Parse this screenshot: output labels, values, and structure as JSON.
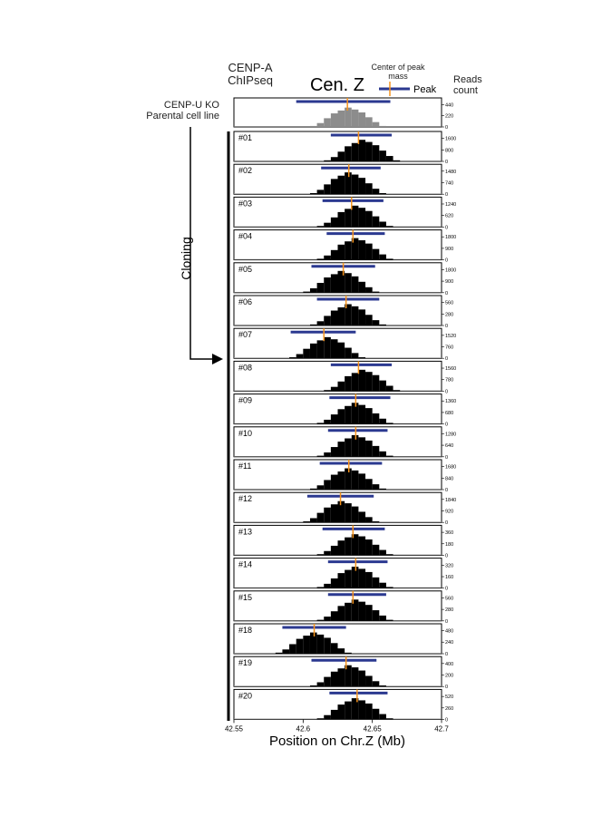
{
  "chart_data": {
    "type": "histogram",
    "title": "Cen. Z",
    "xlabel": "Position on Chr.Z (Mb)",
    "xlim": [
      42.55,
      42.7
    ],
    "xticks": [
      42.55,
      42.6,
      42.65,
      42.7
    ],
    "bins": [
      42.58,
      42.585,
      42.59,
      42.595,
      42.6,
      42.605,
      42.61,
      42.615,
      42.62,
      42.625,
      42.63,
      42.635,
      42.64,
      42.645,
      42.65,
      42.655,
      42.66,
      42.665,
      42.67,
      42.675
    ],
    "assay": "CENP-A ChIPseq",
    "ylabel": "Reads count",
    "process": "Cloning",
    "legend": {
      "peak": "Peak",
      "center": "Center of peak mass"
    },
    "peak_color": "#2b3990",
    "center_color": "#f7941d",
    "series": [
      {
        "name": "CENP-U KO Parental cell line",
        "color": "#8c8c8c",
        "ylim": [
          0,
          570
        ],
        "yticks": [
          0,
          220,
          440
        ],
        "peak": [
          42.595,
          42.663
        ],
        "center": 42.632,
        "values": [
          0,
          0,
          0,
          0,
          0,
          19,
          76,
          171,
          266,
          323,
          380,
          342,
          285,
          190,
          95,
          19,
          0,
          0,
          0
        ]
      },
      {
        "name": "#01",
        "color": "#000000",
        "ylim": [
          0,
          2080
        ],
        "yticks": [
          0,
          800,
          1600
        ],
        "peak": [
          42.62,
          42.664
        ],
        "center": 42.64,
        "values": [
          0,
          0,
          0,
          0,
          0,
          0,
          0,
          75,
          300,
          675,
          1050,
          1275,
          1500,
          1350,
          1125,
          750,
          375,
          75,
          0
        ]
      },
      {
        "name": "#02",
        "color": "#000000",
        "ylim": [
          0,
          1920
        ],
        "yticks": [
          0,
          740,
          1480
        ],
        "peak": [
          42.613,
          42.656
        ],
        "center": 42.633,
        "values": [
          0,
          0,
          0,
          0,
          0,
          70,
          280,
          630,
          980,
          1190,
          1400,
          1260,
          1050,
          700,
          350,
          70,
          0,
          0,
          0
        ]
      },
      {
        "name": "#03",
        "color": "#000000",
        "ylim": [
          0,
          1610
        ],
        "yticks": [
          0,
          620,
          1240
        ],
        "peak": [
          42.614,
          42.658
        ],
        "center": 42.635,
        "values": [
          0,
          0,
          0,
          0,
          0,
          0,
          58,
          230,
          518,
          805,
          978,
          1150,
          1035,
          863,
          575,
          288,
          58,
          0,
          0
        ]
      },
      {
        "name": "#04",
        "color": "#000000",
        "ylim": [
          0,
          2340
        ],
        "yticks": [
          0,
          900,
          1800
        ],
        "peak": [
          42.617,
          42.659
        ],
        "center": 42.636,
        "values": [
          0,
          0,
          0,
          0,
          0,
          0,
          85,
          340,
          765,
          1190,
          1445,
          1700,
          1530,
          1275,
          850,
          425,
          85,
          0,
          0
        ]
      },
      {
        "name": "#05",
        "color": "#000000",
        "ylim": [
          0,
          2340
        ],
        "yticks": [
          0,
          900,
          1800
        ],
        "peak": [
          42.606,
          42.652
        ],
        "center": 42.629,
        "values": [
          0,
          0,
          0,
          0,
          85,
          340,
          765,
          1190,
          1445,
          1700,
          1530,
          1275,
          850,
          425,
          85,
          0,
          0,
          0,
          0
        ]
      },
      {
        "name": "#06",
        "color": "#000000",
        "ylim": [
          0,
          730
        ],
        "yticks": [
          0,
          280,
          560
        ],
        "peak": [
          42.61,
          42.655
        ],
        "center": 42.631,
        "values": [
          0,
          0,
          0,
          0,
          0,
          26,
          104,
          234,
          364,
          442,
          520,
          468,
          390,
          260,
          130,
          26,
          0,
          0,
          0
        ]
      },
      {
        "name": "#07",
        "color": "#000000",
        "ylim": [
          0,
          1980
        ],
        "yticks": [
          0,
          760,
          1520
        ],
        "peak": [
          42.591,
          42.638
        ],
        "center": 42.615,
        "values": [
          0,
          0,
          70,
          280,
          630,
          980,
          1190,
          1400,
          1260,
          1050,
          700,
          350,
          70,
          0,
          0,
          0,
          0,
          0,
          0
        ]
      },
      {
        "name": "#08",
        "color": "#000000",
        "ylim": [
          0,
          2030
        ],
        "yticks": [
          0,
          780,
          1560
        ],
        "peak": [
          42.62,
          42.664
        ],
        "center": 42.64,
        "values": [
          0,
          0,
          0,
          0,
          0,
          0,
          0,
          73,
          290,
          653,
          1015,
          1233,
          1450,
          1305,
          1088,
          725,
          363,
          73,
          0
        ]
      },
      {
        "name": "#09",
        "color": "#000000",
        "ylim": [
          0,
          1770
        ],
        "yticks": [
          0,
          680,
          1360
        ],
        "peak": [
          42.619,
          42.663
        ],
        "center": 42.638,
        "values": [
          0,
          0,
          0,
          0,
          0,
          0,
          63,
          250,
          563,
          875,
          1063,
          1250,
          1125,
          938,
          625,
          313,
          63,
          0,
          0
        ]
      },
      {
        "name": "#10",
        "color": "#000000",
        "ylim": [
          0,
          1660
        ],
        "yticks": [
          0,
          640,
          1280
        ],
        "peak": [
          42.618,
          42.661
        ],
        "center": 42.638,
        "values": [
          0,
          0,
          0,
          0,
          0,
          0,
          60,
          240,
          540,
          840,
          1020,
          1200,
          1080,
          900,
          600,
          300,
          60,
          0,
          0
        ]
      },
      {
        "name": "#11",
        "color": "#000000",
        "ylim": [
          0,
          2180
        ],
        "yticks": [
          0,
          840,
          1680
        ],
        "peak": [
          42.612,
          42.657
        ],
        "center": 42.633,
        "values": [
          0,
          0,
          0,
          0,
          0,
          78,
          310,
          698,
          1085,
          1318,
          1550,
          1395,
          1163,
          775,
          388,
          78,
          0,
          0,
          0
        ]
      },
      {
        "name": "#12",
        "color": "#000000",
        "ylim": [
          0,
          2390
        ],
        "yticks": [
          0,
          920,
          1840
        ],
        "peak": [
          42.603,
          42.651
        ],
        "center": 42.627,
        "values": [
          0,
          0,
          0,
          0,
          85,
          340,
          765,
          1190,
          1445,
          1700,
          1530,
          1275,
          850,
          425,
          85,
          0,
          0,
          0,
          0
        ]
      },
      {
        "name": "#13",
        "color": "#000000",
        "ylim": [
          0,
          470
        ],
        "yticks": [
          0,
          180,
          360
        ],
        "peak": [
          42.614,
          42.659
        ],
        "center": 42.636,
        "values": [
          0,
          0,
          0,
          0,
          0,
          0,
          17,
          66,
          149,
          231,
          281,
          330,
          297,
          248,
          165,
          83,
          17,
          0,
          0
        ]
      },
      {
        "name": "#14",
        "color": "#000000",
        "ylim": [
          0,
          420
        ],
        "yticks": [
          0,
          160,
          320
        ],
        "peak": [
          42.618,
          42.661
        ],
        "center": 42.638,
        "values": [
          0,
          0,
          0,
          0,
          0,
          0,
          15,
          60,
          135,
          210,
          255,
          300,
          270,
          225,
          150,
          75,
          15,
          0,
          0
        ]
      },
      {
        "name": "#15",
        "color": "#000000",
        "ylim": [
          0,
          730
        ],
        "yticks": [
          0,
          280,
          560
        ],
        "peak": [
          42.618,
          42.66
        ],
        "center": 42.636,
        "values": [
          0,
          0,
          0,
          0,
          0,
          0,
          26,
          104,
          234,
          364,
          442,
          520,
          468,
          390,
          260,
          130,
          26,
          0,
          0
        ]
      },
      {
        "name": "#18",
        "color": "#000000",
        "ylim": [
          0,
          620
        ],
        "yticks": [
          0,
          240,
          480
        ],
        "peak": [
          42.585,
          42.631
        ],
        "center": 42.608,
        "values": [
          22,
          88,
          198,
          308,
          374,
          440,
          396,
          330,
          220,
          110,
          22,
          0,
          0,
          0,
          0,
          0,
          0,
          0,
          0
        ]
      },
      {
        "name": "#19",
        "color": "#000000",
        "ylim": [
          0,
          520
        ],
        "yticks": [
          0,
          200,
          400
        ],
        "peak": [
          42.606,
          42.653
        ],
        "center": 42.631,
        "values": [
          0,
          0,
          0,
          0,
          0,
          19,
          74,
          167,
          259,
          315,
          370,
          333,
          278,
          185,
          93,
          19,
          0,
          0,
          0
        ]
      },
      {
        "name": "#20",
        "color": "#000000",
        "ylim": [
          0,
          680
        ],
        "yticks": [
          0,
          260,
          520
        ],
        "peak": [
          42.619,
          42.661
        ],
        "center": 42.639,
        "values": [
          0,
          0,
          0,
          0,
          0,
          0,
          24,
          96,
          216,
          336,
          408,
          480,
          432,
          360,
          240,
          120,
          24,
          0,
          0
        ]
      }
    ]
  }
}
